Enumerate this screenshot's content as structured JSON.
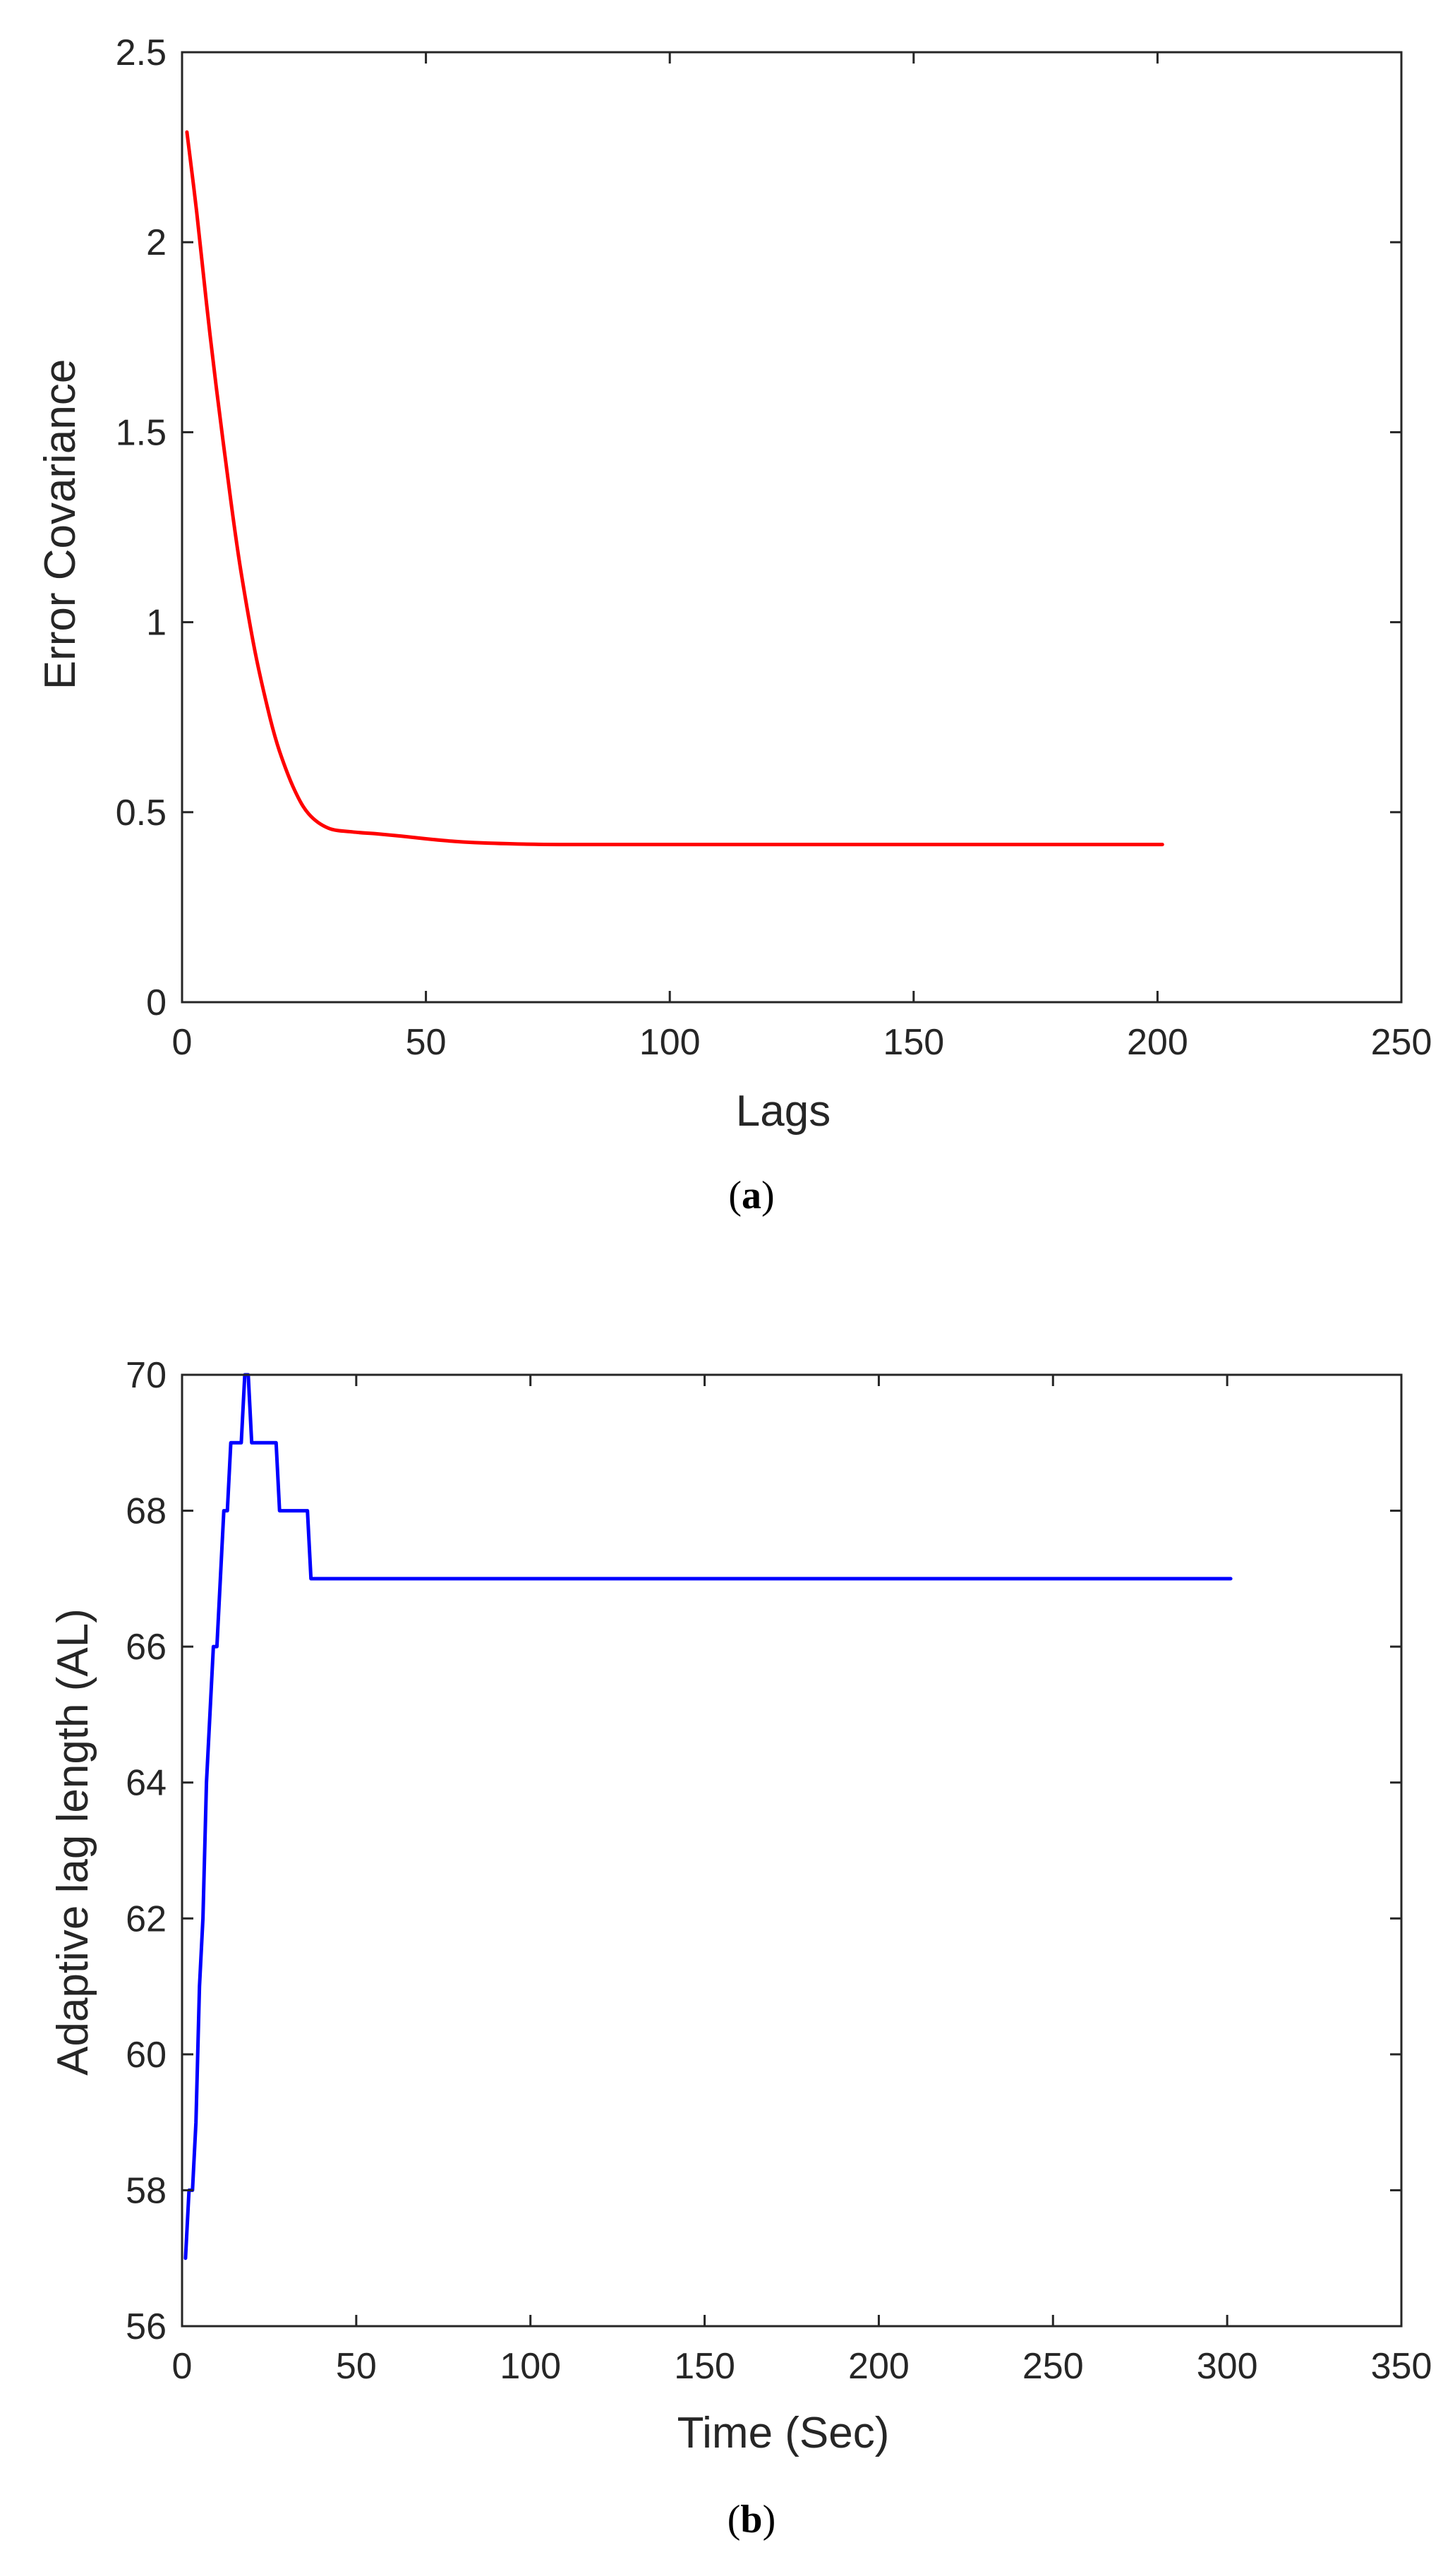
{
  "chart_data": [
    {
      "type": "line",
      "panel_label": "a",
      "xlabel": "Lags",
      "ylabel": "Error Covariance",
      "xlim": [
        0,
        250
      ],
      "ylim": [
        0,
        2.5
      ],
      "xticks": [
        0,
        50,
        100,
        150,
        200,
        250
      ],
      "xtick_labels": [
        "0",
        "50",
        "100",
        "150",
        "200",
        "250"
      ],
      "yticks": [
        0,
        0.5,
        1,
        1.5,
        2,
        2.5
      ],
      "ytick_labels": [
        "0",
        "0.5",
        "1",
        "1.5",
        "2",
        "2.5"
      ],
      "grid": false,
      "line_style": "smooth",
      "series": [
        {
          "color": "#ff0000",
          "x": [
            1,
            3,
            5,
            7,
            10,
            12,
            15,
            18,
            20,
            23,
            26,
            30,
            35,
            40,
            45,
            50,
            55,
            60,
            70,
            80,
            100,
            150,
            201
          ],
          "y": [
            2.29,
            2.08,
            1.84,
            1.62,
            1.32,
            1.14,
            0.92,
            0.75,
            0.66,
            0.56,
            0.495,
            0.458,
            0.448,
            0.443,
            0.437,
            0.43,
            0.424,
            0.42,
            0.416,
            0.415,
            0.415,
            0.415,
            0.415
          ]
        }
      ]
    },
    {
      "type": "line",
      "panel_label": "b",
      "xlabel": "Time (Sec)",
      "ylabel": "Adaptive lag length (AL)",
      "xlim": [
        0,
        350
      ],
      "ylim": [
        56,
        70
      ],
      "xticks": [
        0,
        50,
        100,
        150,
        200,
        250,
        300,
        350
      ],
      "xtick_labels": [
        "0",
        "50",
        "100",
        "150",
        "200",
        "250",
        "300",
        "350"
      ],
      "yticks": [
        56,
        58,
        60,
        62,
        64,
        66,
        68,
        70
      ],
      "ytick_labels": [
        "56",
        "58",
        "60",
        "62",
        "64",
        "66",
        "68",
        "70"
      ],
      "grid": false,
      "line_style": "straight",
      "series": [
        {
          "color": "#0000ff",
          "x": [
            1,
            2,
            3,
            4,
            5,
            6,
            7,
            8,
            9,
            10,
            11,
            12,
            13,
            14,
            15,
            16,
            17,
            18,
            19,
            20,
            21,
            26,
            27,
            28,
            35,
            36,
            37,
            38,
            301
          ],
          "y": [
            57,
            58,
            58,
            59,
            61,
            62,
            64,
            65,
            66,
            66,
            67,
            68,
            68,
            69,
            69,
            69,
            69,
            70,
            70,
            69,
            69,
            69,
            69,
            68,
            68,
            68,
            67,
            67,
            67
          ]
        }
      ]
    }
  ]
}
